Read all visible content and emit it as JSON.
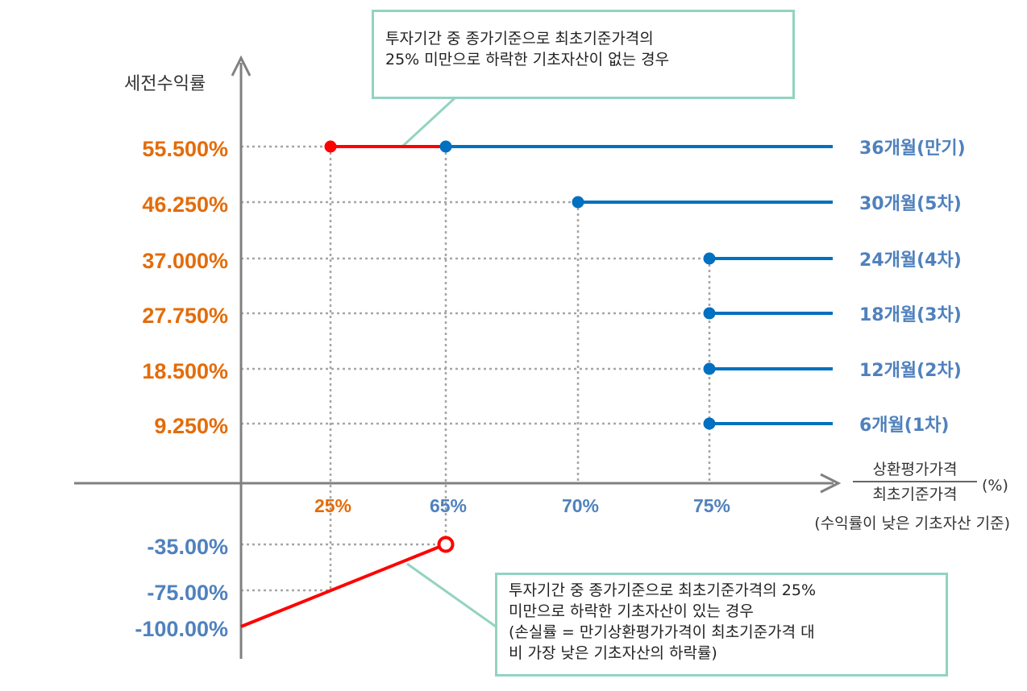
{
  "colors": {
    "orange": "#e36c0a",
    "blue": "#4f81bd",
    "line_blue": "#0070c0",
    "red": "#ff0000",
    "axis": "#808080",
    "grid": "#a6a6a6",
    "callout_border": "#92d3c1"
  },
  "chart_data": {
    "type": "line",
    "ylabel": "세전수익률",
    "xlabel_numerator": "상환평가가격",
    "xlabel_denominator": "최초기준가격",
    "xlabel_unit": "(%)",
    "xlabel_note": "(수익률이 낮은 기초자산 기준)",
    "x_ticks": [
      {
        "label": "25%",
        "value": 25,
        "color": "orange"
      },
      {
        "label": "65%",
        "value": 65,
        "color": "blue"
      },
      {
        "label": "70%",
        "value": 70,
        "color": "blue"
      },
      {
        "label": "75%",
        "value": 75,
        "color": "blue"
      }
    ],
    "y_ticks_positive": [
      {
        "label": "55.500%",
        "value": 55.5
      },
      {
        "label": "46.250%",
        "value": 46.25
      },
      {
        "label": "37.000%",
        "value": 37.0
      },
      {
        "label": "27.750%",
        "value": 27.75
      },
      {
        "label": "18.500%",
        "value": 18.5
      },
      {
        "label": "9.250%",
        "value": 9.25
      }
    ],
    "y_ticks_negative": [
      {
        "label": "-35.00%",
        "value": -35
      },
      {
        "label": "-75.00%",
        "value": -75
      },
      {
        "label": "-100.00%",
        "value": -100
      }
    ],
    "series": [
      {
        "name": "36개월(만기)",
        "barrier": 65,
        "return": 55.5
      },
      {
        "name": "30개월(5차)",
        "barrier": 70,
        "return": 46.25
      },
      {
        "name": "24개월(4차)",
        "barrier": 75,
        "return": 37.0
      },
      {
        "name": "18개월(3차)",
        "barrier": 75,
        "return": 27.75
      },
      {
        "name": "12개월(2차)",
        "barrier": 75,
        "return": 18.5
      },
      {
        "name": "6개월(1차)",
        "barrier": 75,
        "return": 9.25
      }
    ],
    "red_upper": {
      "x_start": 25,
      "x_end": 65,
      "return": 55.5
    },
    "red_lower": {
      "points": [
        [
          0,
          -100
        ],
        [
          65,
          -35
        ]
      ],
      "open_end_x": 65,
      "open_end_return": -35
    },
    "annotations": {
      "top": [
        "투자기간 중 종가기준으로 최초기준가격의",
        "25% 미만으로 하락한 기초자산이 없는 경우"
      ],
      "bottom": [
        "투자기간 중 종가기준으로 최초기준가격의 25%",
        "미만으로 하락한 기초자산이 있는 경우",
        "(손실률 = 만기상환평가가격이 최초기준가격 대",
        "비 가장 낮은 기초자산의 하락률)"
      ]
    }
  }
}
